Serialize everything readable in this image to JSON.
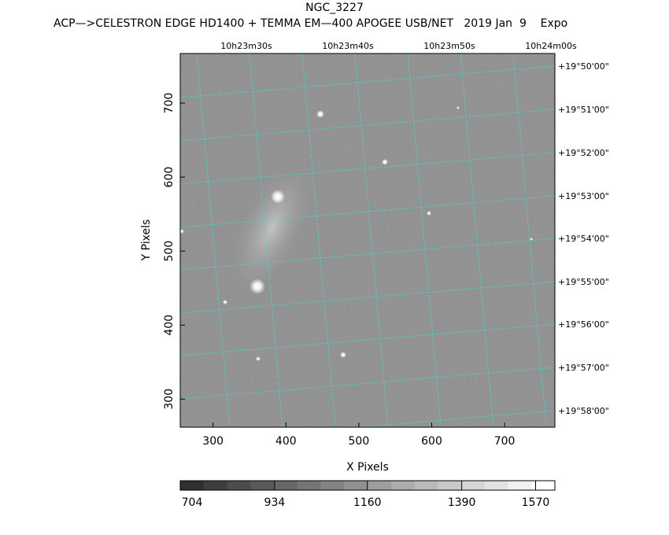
{
  "chart_data": {
    "type": "image",
    "title": "NGC_3227",
    "subtitle": "ACP—>CELESTRON EDGE HD1400 + TEMMA EM—400 APOGEE USB/NET   2019 Jan  9    Expo",
    "xlabel": "X Pixels",
    "ylabel": "Y Pixels",
    "xlim": [
      255,
      769
    ],
    "ylim": [
      262,
      767
    ],
    "xticks": [
      300,
      400,
      500,
      600,
      700
    ],
    "yticks": [
      300,
      400,
      500,
      600,
      700
    ],
    "ra_labels": [
      "10h23m30s",
      "10h23m40s",
      "10h23m50s",
      "10h24m00s"
    ],
    "dec_labels": [
      "+19°50'00\"",
      "+19°51'00\"",
      "+19°52'00\"",
      "+19°53'00\"",
      "+19°54'00\"",
      "+19°55'00\"",
      "+19°56'00\"",
      "+19°57'00\"",
      "+19°58'00\""
    ],
    "clim": [
      704,
      1617
    ],
    "cticks": [
      704,
      934,
      1160,
      1390,
      1570
    ],
    "grid_color": "#3fd6d6"
  }
}
